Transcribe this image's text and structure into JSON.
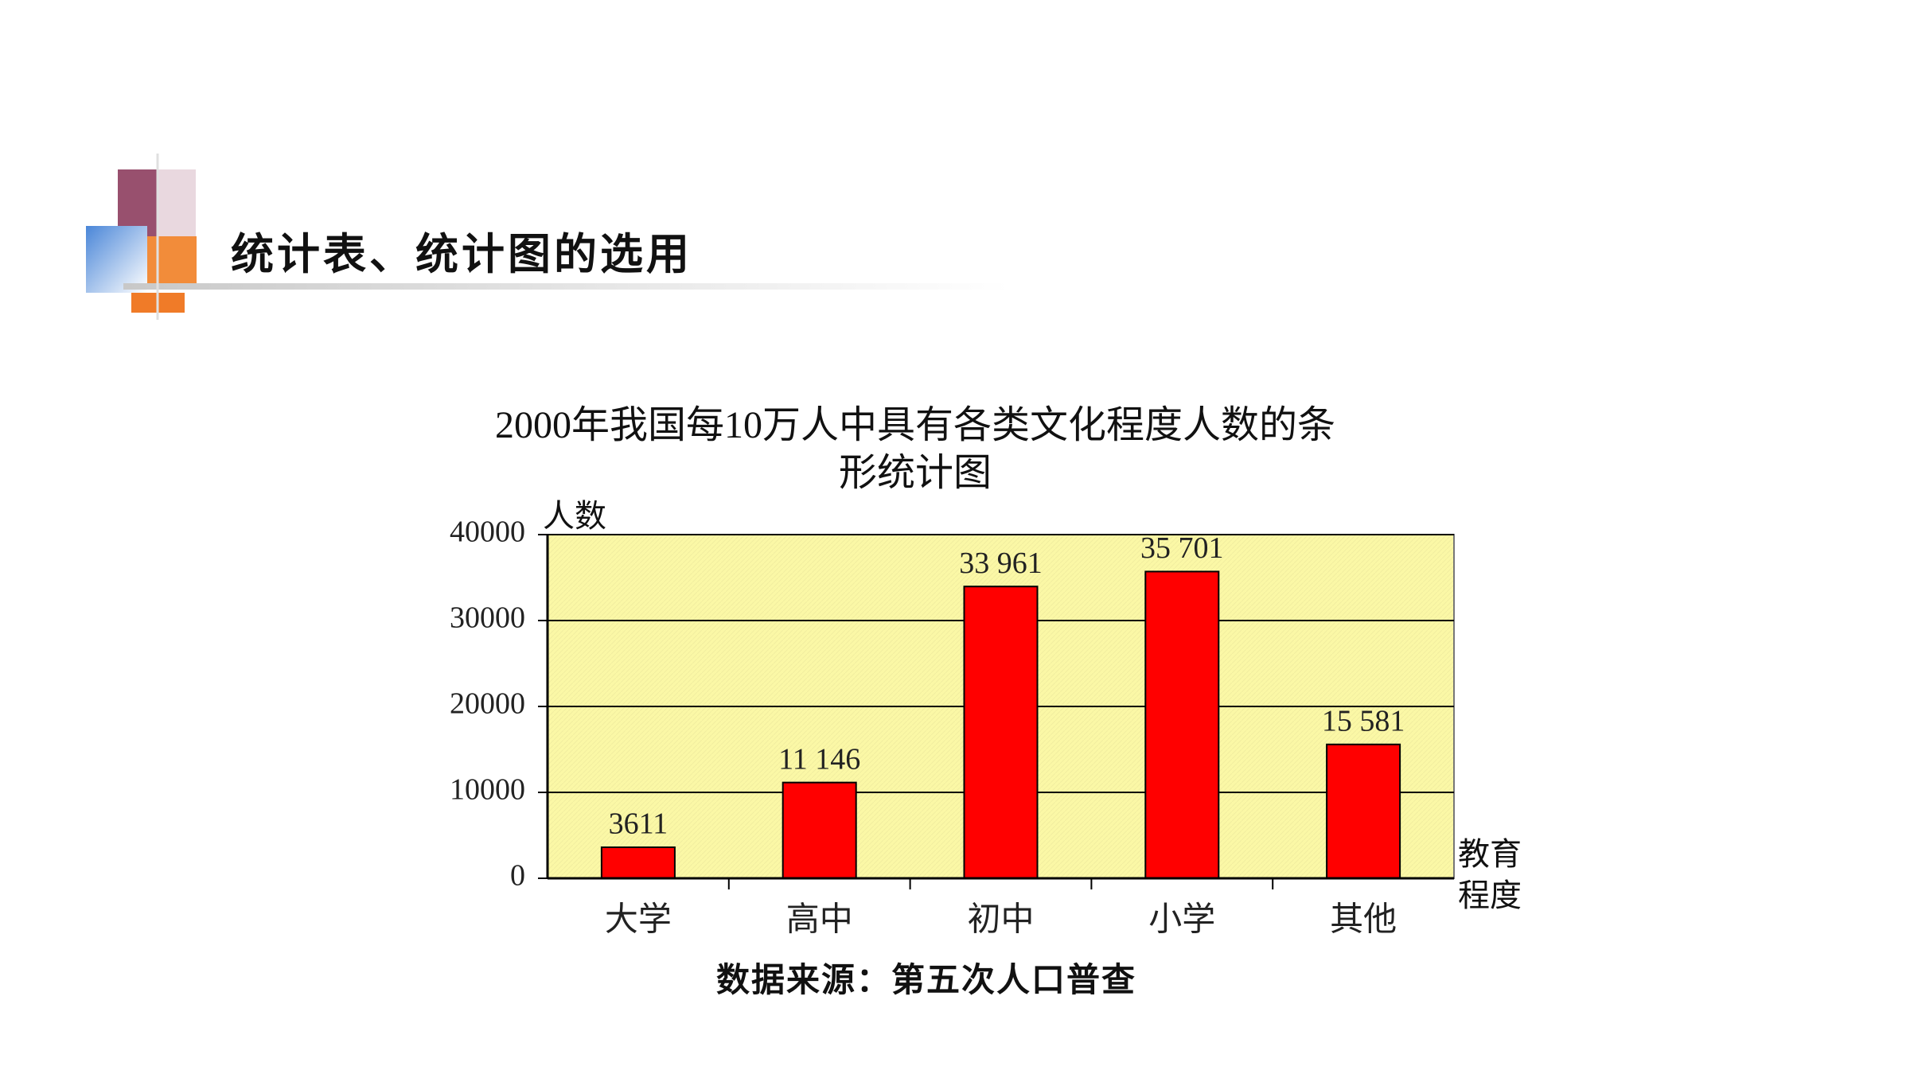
{
  "header": {
    "title": "统计表、统计图的选用"
  },
  "chart_data": {
    "type": "bar",
    "title": "2000年我国每10万人中具有各类文化程度人数的条形统计图",
    "y_label": "人数",
    "x_label": "教育程度",
    "source": "数据来源：第五次人口普查",
    "categories": [
      "大学",
      "高中",
      "初中",
      "小学",
      "其他"
    ],
    "values": [
      3611,
      11146,
      33961,
      35701,
      15581
    ],
    "value_labels": [
      "3611",
      "11 146",
      "33 961",
      "35 701",
      "15 581"
    ],
    "color": "#ff0000",
    "ylim": [
      0,
      40000
    ],
    "yticks": [
      0,
      10000,
      20000,
      30000,
      40000
    ],
    "grid": true
  }
}
